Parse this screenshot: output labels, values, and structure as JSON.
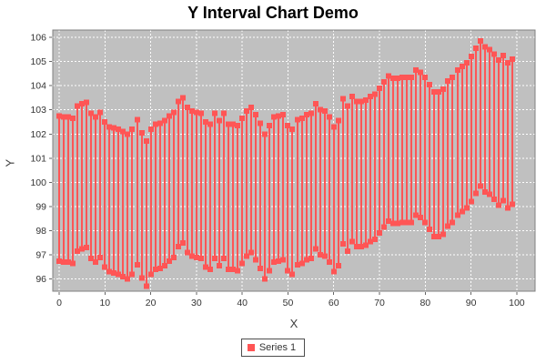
{
  "title": "Y Interval Chart Demo",
  "legend": {
    "position": "bottom",
    "items": [
      {
        "label": "Series 1",
        "color": "#ff5555"
      }
    ]
  },
  "colors": {
    "chart_bg": "#ffffff",
    "plot_bg": "#c0c0c0",
    "grid": "#ffffff",
    "plot_border": "#808080",
    "tick_mark": "#666666",
    "tick_label": "#333333",
    "axis_label": "#404040",
    "series": "#ff5555"
  },
  "chart_data": {
    "type": "scatter",
    "mark": "y-interval: vertical line from y_low to y_high with 6px square caps at both ends",
    "title": "Y Interval Chart Demo",
    "xlabel": "X",
    "ylabel": "Y",
    "xlim": [
      -1.4,
      104.0
    ],
    "ylim": [
      95.5,
      106.3
    ],
    "x_ticks": [
      0,
      10,
      20,
      30,
      40,
      50,
      60,
      70,
      80,
      90,
      100
    ],
    "y_ticks": [
      96,
      97,
      98,
      99,
      100,
      101,
      102,
      103,
      104,
      105,
      106
    ],
    "grid": true,
    "legend_position": "bottom",
    "series": [
      {
        "name": "Series 1",
        "x_start": 0,
        "x_step": 1,
        "interval_width": 6,
        "note": "y_low = y_high - 6; y_center = y_high - 3",
        "y_high": [
          102.75,
          102.7,
          102.7,
          102.65,
          103.15,
          103.25,
          103.3,
          102.85,
          102.7,
          102.9,
          102.5,
          102.3,
          102.25,
          102.2,
          102.1,
          102.0,
          102.2,
          102.6,
          102.05,
          101.7,
          102.2,
          102.4,
          102.45,
          102.55,
          102.75,
          102.9,
          103.35,
          103.5,
          103.1,
          102.95,
          102.9,
          102.85,
          102.5,
          102.4,
          102.85,
          102.55,
          102.85,
          102.4,
          102.4,
          102.35,
          102.65,
          102.95,
          103.1,
          102.8,
          102.45,
          102.0,
          102.35,
          102.7,
          102.75,
          102.8,
          102.35,
          102.2,
          102.6,
          102.65,
          102.8,
          102.85,
          103.25,
          103.0,
          102.95,
          102.7,
          102.3,
          102.55,
          103.45,
          103.15,
          103.55,
          103.35,
          103.35,
          103.4,
          103.55,
          103.65,
          103.9,
          104.15,
          104.4,
          104.3,
          104.3,
          104.35,
          104.35,
          104.35,
          104.65,
          104.55,
          104.35,
          104.05,
          103.75,
          103.75,
          103.85,
          104.2,
          104.35,
          104.65,
          104.8,
          104.95,
          105.2,
          105.55,
          105.85,
          105.6,
          105.5,
          105.3,
          105.05,
          105.25,
          104.95,
          105.1
        ]
      }
    ]
  }
}
